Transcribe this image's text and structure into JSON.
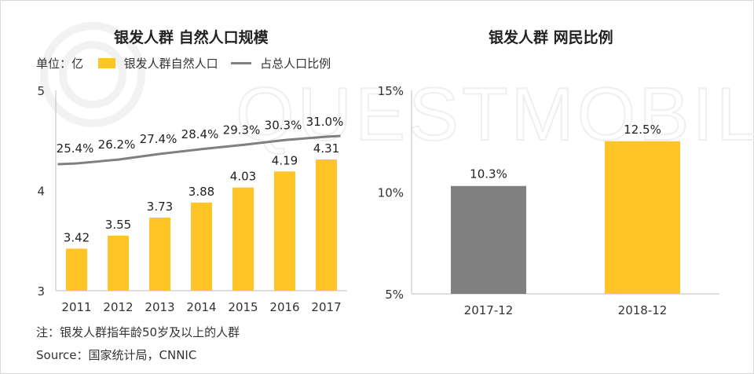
{
  "left": {
    "title": "银发人群 自然人口规模",
    "unit_label": "单位：亿",
    "legend": [
      "银发人群自然人口",
      "占总人口比例"
    ],
    "note": "注：银发人群指年龄50岁及以上的人群",
    "source": "Source：国家统计局，CNNIC"
  },
  "right": {
    "title": "银发人群 网民比例"
  },
  "colors": {
    "bar": "#FFC425",
    "line": "#808080",
    "bar_gray": "#808080",
    "axis": "#BFBFBF"
  },
  "chart_data": [
    {
      "type": "bar",
      "title": "银发人群 自然人口规模",
      "categories": [
        "2011",
        "2012",
        "2013",
        "2014",
        "2015",
        "2016",
        "2017"
      ],
      "series": [
        {
          "name": "银发人群自然人口",
          "type": "bar",
          "values": [
            3.42,
            3.55,
            3.73,
            3.88,
            4.03,
            4.19,
            4.31
          ],
          "labels": [
            "3.42",
            "3.55",
            "3.73",
            "3.88",
            "4.03",
            "4.19",
            "4.31"
          ]
        },
        {
          "name": "占总人口比例",
          "type": "line",
          "values": [
            25.4,
            26.2,
            27.4,
            28.4,
            29.3,
            30.3,
            31.0
          ],
          "labels": [
            "25.4%",
            "26.2%",
            "27.4%",
            "28.4%",
            "29.3%",
            "30.3%",
            "31.0%"
          ]
        }
      ],
      "ylim": [
        3,
        5
      ],
      "yticks": [
        "3",
        "4",
        "5"
      ],
      "ylabel": "单位：亿",
      "legend_position": "top-left"
    },
    {
      "type": "bar",
      "title": "银发人群 网民比例",
      "categories": [
        "2017-12",
        "2018-12"
      ],
      "values": [
        10.3,
        12.5
      ],
      "labels": [
        "10.3%",
        "12.5%"
      ],
      "bar_colors": [
        "#808080",
        "#FFC425"
      ],
      "ylim": [
        5,
        15
      ],
      "yticks": [
        "5%",
        "10%",
        "15%"
      ]
    }
  ]
}
